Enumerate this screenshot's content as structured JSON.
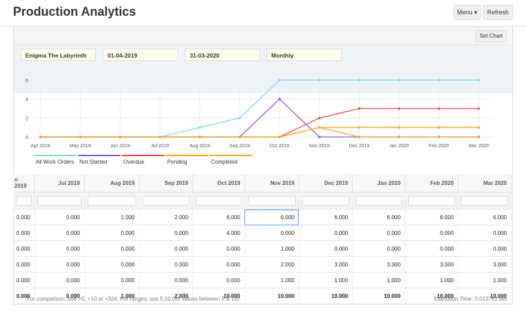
{
  "header": {
    "title": "Production Analytics",
    "menu_label": "Menu",
    "refresh_label": "Refresh"
  },
  "toolbar": {
    "set_chart_label": "Set Chart"
  },
  "filters": {
    "item": "Enigma The Labyrinth",
    "from_date": "01-04-2019",
    "to_date": "31-03-2020",
    "range": "Monthly"
  },
  "colors": {
    "all": "#7dd3f0",
    "not_started": "#8a4fe0",
    "overdue": "#e8474b",
    "pending": "#f6a623",
    "completed": "#f6a623"
  },
  "chart_data": {
    "type": "line",
    "categories": [
      "Apr 2019",
      "May 2019",
      "Jun 2019",
      "Jul 2019",
      "Aug 2019",
      "Sep 2019",
      "Oct 2019",
      "Nov 2019",
      "Dec 2019",
      "Jan 2020",
      "Feb 2020",
      "Mar 2020"
    ],
    "ylim": [
      0,
      6
    ],
    "yticks": [
      "0",
      "2",
      "4",
      "6"
    ],
    "grid": true,
    "legend_position": "bottom-left",
    "series": [
      {
        "name": "All Work Orders",
        "color": "#7dd3f0",
        "values": [
          0,
          0,
          0,
          0,
          1,
          2,
          6,
          6,
          6,
          6,
          6,
          6
        ]
      },
      {
        "name": "Not Started",
        "color": "#8a4fe0",
        "values": [
          0,
          0,
          0,
          0,
          0,
          0,
          4,
          0,
          0,
          0,
          0,
          0
        ]
      },
      {
        "name": "Overdue",
        "color": "#e8474b",
        "values": [
          0,
          0,
          0,
          0,
          0,
          0,
          0,
          2,
          3,
          3,
          3,
          3
        ]
      },
      {
        "name": "Pending",
        "color": "#f6a623",
        "values": [
          0,
          0,
          0,
          0,
          0,
          0,
          0,
          1,
          1,
          1,
          1,
          1
        ]
      },
      {
        "name": "Completed",
        "color": "#f6a623",
        "values": [
          0,
          0,
          0,
          0,
          0,
          0,
          0,
          1,
          0,
          0,
          0,
          0
        ]
      }
    ]
  },
  "table": {
    "columns": [
      "n 2019",
      "Jul 2019",
      "Aug 2019",
      "Sep 2019",
      "Oct 2019",
      "Nov 2019",
      "Dec 2019",
      "Jan 2020",
      "Feb 2020",
      "Mar 2020"
    ],
    "rows": [
      [
        "0.000",
        "0.000",
        "1.000",
        "2.000",
        "6.000",
        "6.000",
        "6.000",
        "6.000",
        "6.000",
        "6.000"
      ],
      [
        "0.000",
        "0.000",
        "0.000",
        "0.000",
        "4.000",
        "0.000",
        "0.000",
        "0.000",
        "0.000",
        "0.000"
      ],
      [
        "0.000",
        "0.000",
        "0.000",
        "0.000",
        "0.000",
        "1.000",
        "0.000",
        "0.000",
        "0.000",
        "0.000"
      ],
      [
        "0.000",
        "0.000",
        "0.000",
        "0.000",
        "0.000",
        "2.000",
        "3.000",
        "3.000",
        "3.000",
        "3.000"
      ],
      [
        "0.000",
        "0.000",
        "0.000",
        "0.000",
        "0.000",
        "1.000",
        "1.000",
        "1.000",
        "1.000",
        "1.000"
      ],
      [
        "0.000",
        "0.000",
        "1.000",
        "2.000",
        "10.000",
        "10.000",
        "10.000",
        "10.000",
        "10.000",
        "10.000"
      ]
    ]
  },
  "footer": {
    "hint": "For comparison, use >5, <10 or =324. For ranges, use 5:10 (for values between 5 & 10).",
    "execution": "Execution Time: 0.013781 sec"
  }
}
